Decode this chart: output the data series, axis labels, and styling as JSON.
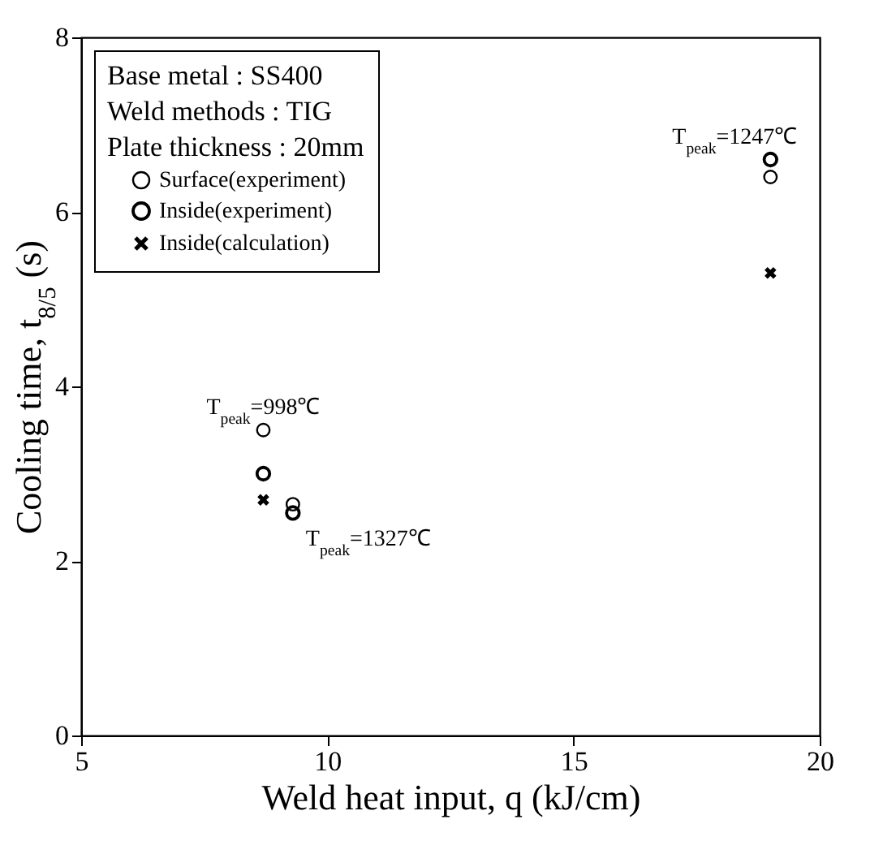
{
  "chart_data": {
    "type": "scatter",
    "xlabel": "Weld heat input, q (kJ/cm)",
    "ylabel": "Cooling time, t$_{8/5}$ (s)",
    "legend_title": "Base metal : SS400\nWeld methods : TIG\nPlate thickness : 20mm",
    "x": [
      8.7,
      9.3,
      19.0
    ],
    "series": [
      {
        "name": "Surface(experiment)",
        "color": "#000000",
        "marker": "circle",
        "values": [
          3.5,
          2.65,
          6.4
        ]
      },
      {
        "name": "Inside(experiment)",
        "color": "#000000",
        "marker": "circle",
        "values": [
          3.0,
          2.55,
          6.6
        ]
      },
      {
        "name": "Inside(calculation)",
        "color": "#000000",
        "marker": "cross",
        "values": [
          2.7,
          null,
          5.3
        ]
      }
    ],
    "annotations": [
      {
        "text": "T$_{peak}$=998℃",
        "x": 8.7,
        "y": 3.5
      },
      {
        "text": "T$_{peak}$=1327℃",
        "x": 9.3,
        "y": 2.55
      },
      {
        "text": "T$_{peak}$=1247℃",
        "x": 19.0,
        "y": 6.6
      }
    ],
    "xlim": [
      5,
      20
    ],
    "xticks": [
      5,
      10,
      15,
      20
    ],
    "ylim": [
      0,
      8
    ],
    "yticks": [
      0,
      2,
      4,
      6,
      8
    ],
    "grid": false,
    "legend": "top left"
  }
}
